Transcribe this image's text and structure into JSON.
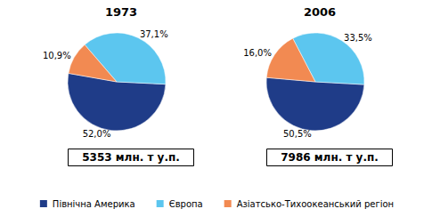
{
  "chart_data": [
    {
      "type": "pie",
      "title": "1973",
      "annotation": "5353 млн. т у.п.",
      "categories": [
        "Північна Америка",
        "Європа",
        "Азіатсько-Тихоокеанський регіон"
      ],
      "values": [
        52.0,
        37.1,
        10.9
      ],
      "value_labels": [
        "52,0%",
        "37,1%",
        "10,9%"
      ],
      "colors": [
        "#1f3c88",
        "#5cc6ef",
        "#f28a52"
      ],
      "data_labels": true,
      "legend": "bottom"
    },
    {
      "type": "pie",
      "title": "2006",
      "annotation": "7986 млн. т у.п.",
      "categories": [
        "Північна Америка",
        "Європа",
        "Азіатсько-Тихоокеанський регіон"
      ],
      "values": [
        50.5,
        33.5,
        16.0
      ],
      "value_labels": [
        "50,5%",
        "33,5%",
        "16,0%"
      ],
      "colors": [
        "#1f3c88",
        "#5cc6ef",
        "#f28a52"
      ],
      "data_labels": true
    }
  ]
}
